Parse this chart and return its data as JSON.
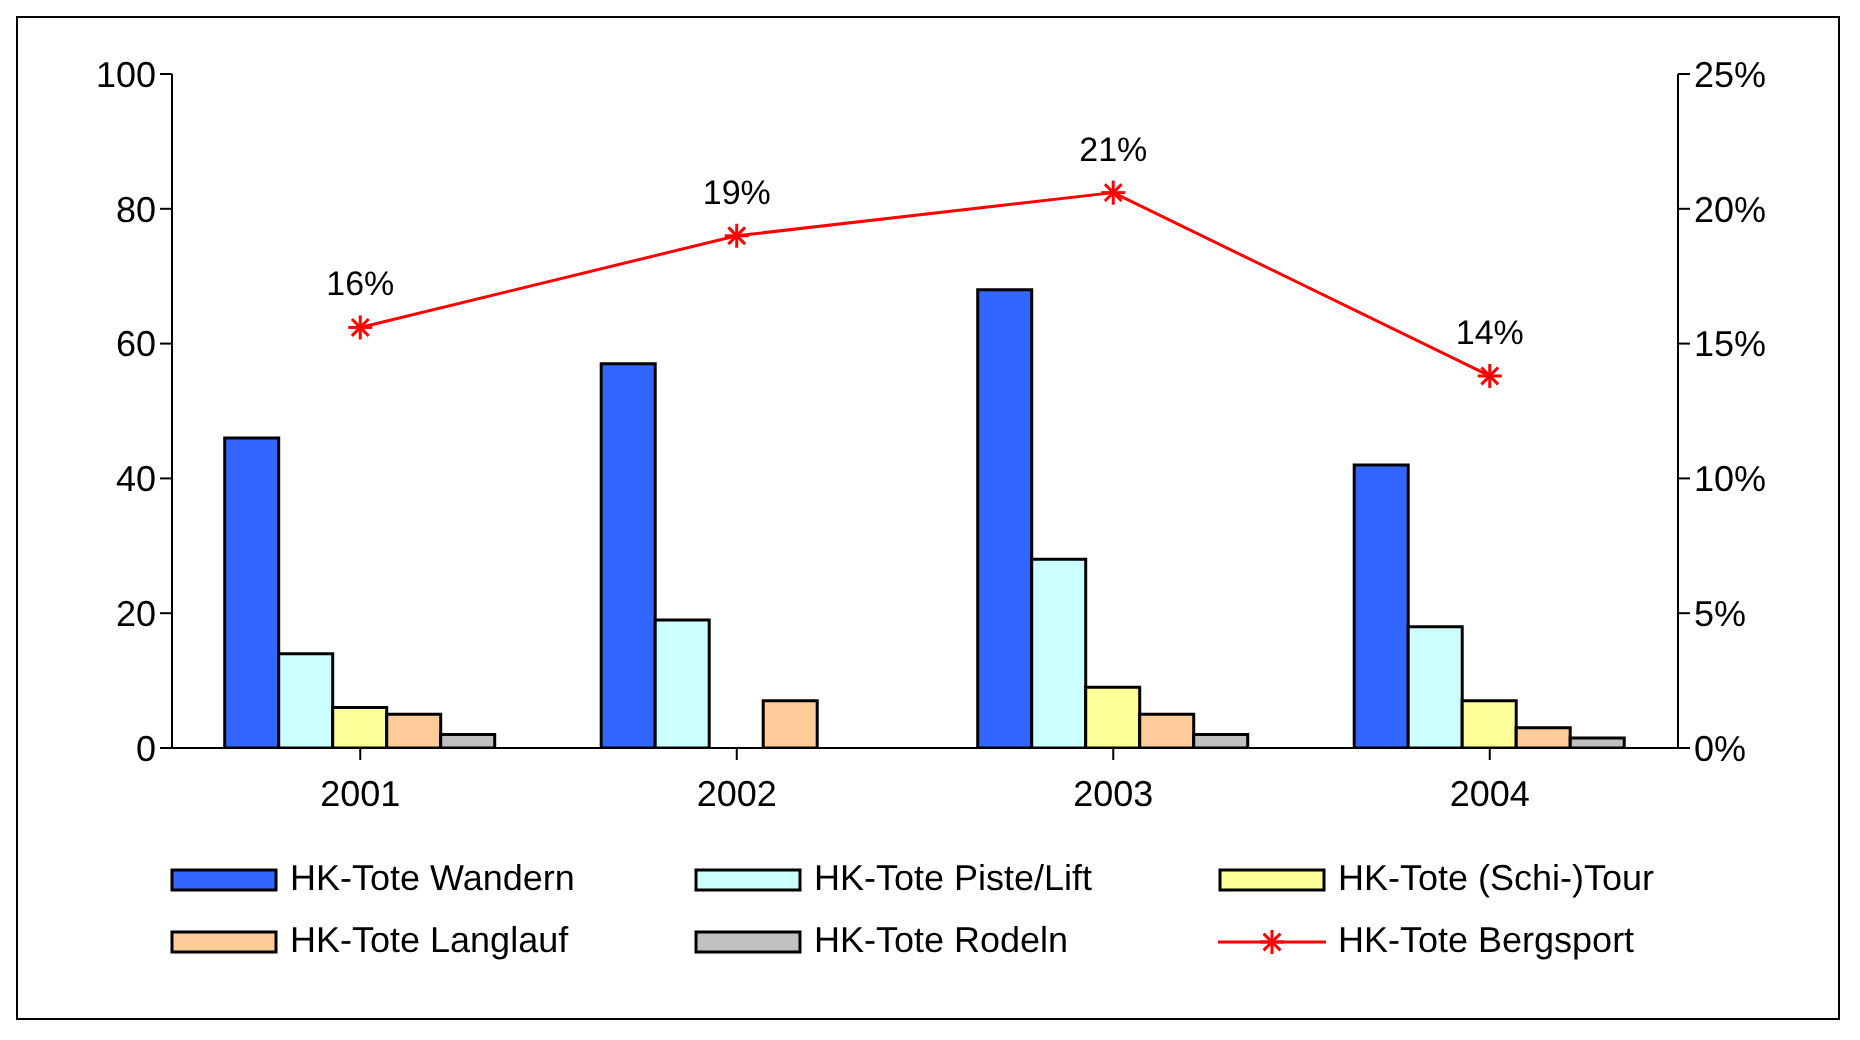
{
  "chart_data": {
    "type": "bar",
    "categories": [
      "2001",
      "2002",
      "2003",
      "2004"
    ],
    "series": [
      {
        "name": "HK-Tote Wandern",
        "color": "#3366ff",
        "values": [
          46,
          57,
          68,
          42
        ]
      },
      {
        "name": "HK-Tote Piste/Lift",
        "color": "#ccffff",
        "values": [
          14,
          19,
          28,
          18
        ]
      },
      {
        "name": "HK-Tote (Schi-)Tour",
        "color": "#ffff99",
        "values": [
          6,
          null,
          9,
          7
        ]
      },
      {
        "name": "HK-Tote Langlauf",
        "color": "#ffcc99",
        "values": [
          5,
          7,
          5,
          3
        ]
      },
      {
        "name": "HK-Tote Rodeln",
        "color": "#c0c0c0",
        "values": [
          2,
          null,
          2,
          1.5
        ]
      },
      {
        "name": "HK-Tote Bergsport",
        "type": "line",
        "axis": "y2",
        "color": "#ff0000",
        "marker": "cross",
        "values": [
          15.6,
          19,
          20.6,
          13.8
        ],
        "value_labels": [
          "16%",
          "19%",
          "21%",
          "14%"
        ]
      }
    ],
    "ylim": [
      0,
      100
    ],
    "yticks": [
      0,
      20,
      40,
      60,
      80,
      100
    ],
    "y2lim": [
      0,
      25
    ],
    "y2ticks": [
      {
        "value": 0,
        "label": "0%"
      },
      {
        "value": 5,
        "label": "5%"
      },
      {
        "value": 10,
        "label": "10%"
      },
      {
        "value": 15,
        "label": "15%"
      },
      {
        "value": 20,
        "label": "20%"
      },
      {
        "value": 25,
        "label": "25%"
      }
    ],
    "grid": false,
    "legend": "bottom"
  }
}
